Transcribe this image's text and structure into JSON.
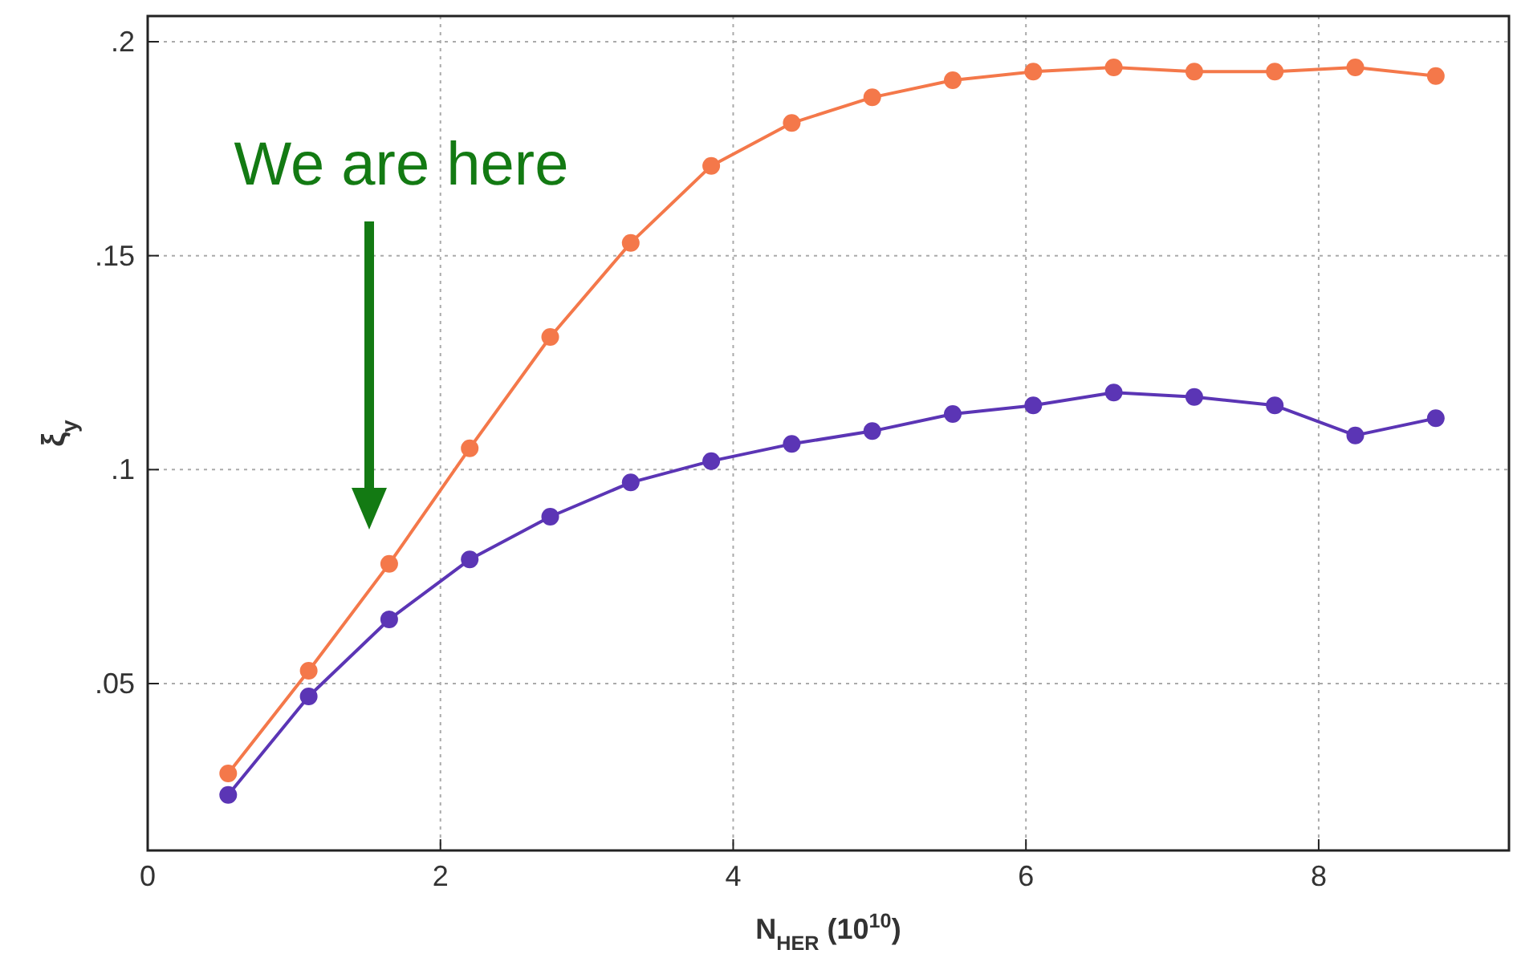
{
  "chart_data": {
    "type": "line",
    "xlabel": "N$_{HER}$ (10$^{10}$)",
    "ylabel": "ξ$_{y}$",
    "x": [
      0.55,
      1.1,
      1.65,
      2.2,
      2.75,
      3.3,
      3.85,
      4.4,
      4.95,
      5.5,
      6.05,
      6.6,
      7.15,
      7.7,
      8.25,
      8.8
    ],
    "series": [
      {
        "color": "#f4784a",
        "values": [
          0.029,
          0.053,
          0.078,
          0.105,
          0.131,
          0.153,
          0.171,
          0.181,
          0.187,
          0.191,
          0.193,
          0.194,
          0.193,
          0.193,
          0.194,
          0.192
        ]
      },
      {
        "color": "#5b35b5",
        "values": [
          0.024,
          0.047,
          0.065,
          0.079,
          0.089,
          0.097,
          0.102,
          0.106,
          0.109,
          0.113,
          0.115,
          0.118,
          0.117,
          0.115,
          0.108,
          0.112
        ]
      }
    ],
    "xlim": [
      0,
      9.3
    ],
    "ylim": [
      0.011,
      0.206
    ],
    "xticks": [
      0,
      2,
      4,
      6,
      8
    ],
    "yticks": [
      {
        "value": 0.05,
        "label": ".05"
      },
      {
        "value": 0.1,
        "label": ".1"
      },
      {
        "value": 0.15,
        "label": ".15"
      },
      {
        "value": 0.2,
        "label": ".2"
      }
    ],
    "grid": true,
    "marker": "circle",
    "line_style": "solid",
    "annotations": [
      "We are here"
    ]
  }
}
